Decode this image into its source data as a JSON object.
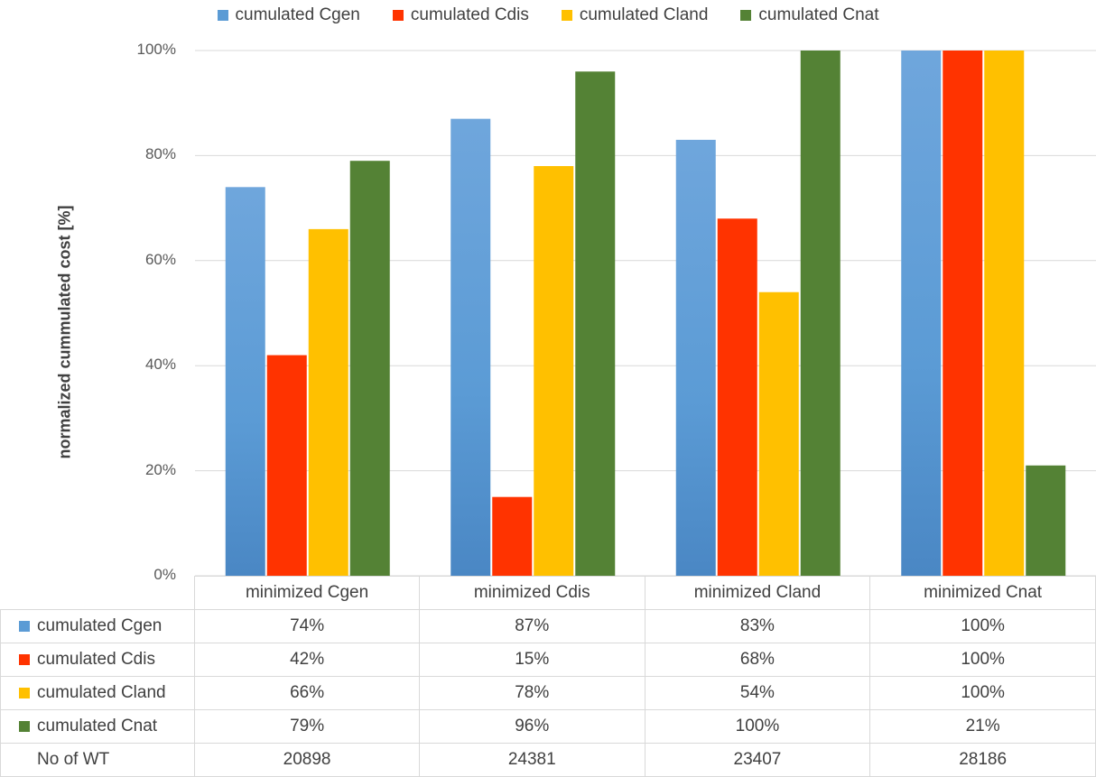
{
  "chart_data": {
    "type": "bar",
    "categories": [
      "minimized Cgen",
      "minimized Cdis",
      "minimized Cland",
      "minimized Cnat"
    ],
    "series": [
      {
        "name": "cumulated Cgen",
        "color": "#5b9bd5",
        "values": [
          74,
          87,
          83,
          100
        ],
        "labels": [
          "74%",
          "87%",
          "83%",
          "100%"
        ]
      },
      {
        "name": "cumulated Cdis",
        "color": "#ff3300",
        "values": [
          42,
          15,
          68,
          100
        ],
        "labels": [
          "42%",
          "15%",
          "68%",
          "100%"
        ]
      },
      {
        "name": "cumulated Cland",
        "color": "#ffc000",
        "values": [
          66,
          78,
          54,
          100
        ],
        "labels": [
          "66%",
          "78%",
          "54%",
          "100%"
        ]
      },
      {
        "name": "cumulated Cnat",
        "color": "#548235",
        "values": [
          79,
          96,
          100,
          21
        ],
        "labels": [
          "79%",
          "96%",
          "100%",
          "21%"
        ]
      }
    ],
    "ylabel": "normalized cummulated cost [%]",
    "ylim": [
      0,
      100
    ],
    "yticks": [
      "0%",
      "20%",
      "40%",
      "60%",
      "80%",
      "100%"
    ],
    "grid": true,
    "legend_position": "top",
    "extra_row": {
      "label": "No of WT",
      "values": [
        "20898",
        "24381",
        "23407",
        "28186"
      ]
    }
  }
}
